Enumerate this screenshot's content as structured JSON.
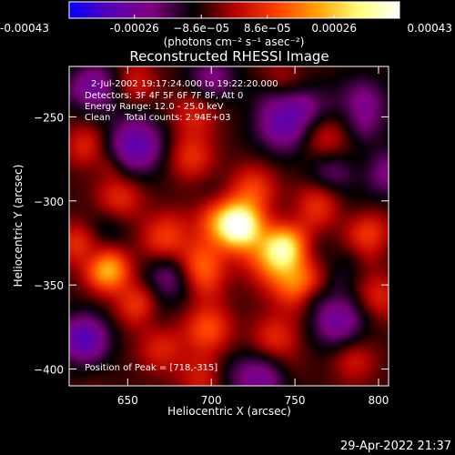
{
  "chart_data": {
    "type": "heatmap",
    "title": "Reconstructed RHESSI Image",
    "xlabel": "Heliocentric X (arcsec)",
    "ylabel": "Heliocentric Y (arcsec)",
    "xlim": [
      615,
      806
    ],
    "ylim": [
      -410,
      -220
    ],
    "x_ticks": [
      650,
      700,
      750,
      800
    ],
    "x_tick_labels": [
      "650",
      "700",
      "750",
      "800"
    ],
    "y_ticks": [
      -250,
      -300,
      -350,
      -400
    ],
    "y_tick_labels": [
      "−250",
      "−300",
      "−350",
      "−400"
    ],
    "colorbar": {
      "range": [
        -0.00043,
        0.00043
      ],
      "ticks": [
        -0.00043,
        -0.00026,
        -8.6e-05,
        8.6e-05,
        0.00026,
        0.00043
      ],
      "tick_labels": [
        "-0.00043",
        "-0.00026",
        "−8.6e−05",
        "8.6e−05",
        "0.00026",
        "0.00043"
      ],
      "units": "(photons cm⁻² s⁻¹ asec⁻²)",
      "colors": [
        "#0000ff",
        "#5a00b4",
        "#800080",
        "#000000",
        "#b40000",
        "#ff3c00",
        "#ffa000",
        "#ffff78",
        "#ffffff"
      ]
    },
    "annotations": [
      "2-Jul-2002 19:17:24.000 to 19:22:20.000",
      "Detectors: 3F 4F 5F 6F 7F 8F, Att 0",
      "Energy Range: 12.0 - 25.0 keV",
      "Clean     Total counts: 2.94E+03"
    ],
    "peak_label": "Position of Peak = [718,-315]",
    "peak": [
      718,
      -315
    ],
    "sources": [
      {
        "x": 718,
        "y": -315,
        "amp": 1.0,
        "width": 9
      },
      {
        "x": 706,
        "y": -312,
        "amp": 0.55,
        "width": 11
      },
      {
        "x": 744,
        "y": -327,
        "amp": 0.8,
        "width": 9
      },
      {
        "x": 733,
        "y": -336,
        "amp": 0.45,
        "width": 11
      },
      {
        "x": 638,
        "y": -341,
        "amp": 0.75,
        "width": 9
      },
      {
        "x": 694,
        "y": -339,
        "amp": 0.5,
        "width": 10
      },
      {
        "x": 752,
        "y": -349,
        "amp": 0.55,
        "width": 11
      },
      {
        "x": 725,
        "y": -293,
        "amp": 0.4,
        "width": 10
      },
      {
        "x": 672,
        "y": -322,
        "amp": 0.4,
        "width": 10
      },
      {
        "x": 698,
        "y": -376,
        "amp": 0.45,
        "width": 10
      },
      {
        "x": 738,
        "y": -382,
        "amp": 0.35,
        "width": 10
      },
      {
        "x": 670,
        "y": -388,
        "amp": 0.3,
        "width": 10
      },
      {
        "x": 695,
        "y": -405,
        "amp": 0.3,
        "width": 10
      },
      {
        "x": 764,
        "y": -302,
        "amp": 0.35,
        "width": 10
      },
      {
        "x": 688,
        "y": -274,
        "amp": 0.35,
        "width": 10
      },
      {
        "x": 690,
        "y": -248,
        "amp": 0.3,
        "width": 10
      },
      {
        "x": 768,
        "y": -263,
        "amp": 0.3,
        "width": 10
      },
      {
        "x": 645,
        "y": -298,
        "amp": 0.35,
        "width": 10
      },
      {
        "x": 620,
        "y": -325,
        "amp": 0.35,
        "width": 9
      },
      {
        "x": 795,
        "y": -318,
        "amp": 0.3,
        "width": 9
      },
      {
        "x": 800,
        "y": -356,
        "amp": 0.3,
        "width": 9
      },
      {
        "x": 656,
        "y": -362,
        "amp": 0.4,
        "width": 9
      },
      {
        "x": 786,
        "y": -396,
        "amp": 0.3,
        "width": 9
      },
      {
        "x": 625,
        "y": -268,
        "amp": 0.25,
        "width": 9
      },
      {
        "x": 655,
        "y": -230,
        "amp": 0.25,
        "width": 9
      },
      {
        "x": 740,
        "y": -228,
        "amp": 0.25,
        "width": 9
      },
      {
        "x": 655,
        "y": -267,
        "amp": -0.55,
        "width": 12
      },
      {
        "x": 744,
        "y": -254,
        "amp": -0.5,
        "width": 12
      },
      {
        "x": 788,
        "y": -243,
        "amp": -0.55,
        "width": 11
      },
      {
        "x": 624,
        "y": -382,
        "amp": -0.6,
        "width": 10
      },
      {
        "x": 675,
        "y": -345,
        "amp": -0.35,
        "width": 10
      },
      {
        "x": 730,
        "y": -405,
        "amp": -0.4,
        "width": 11
      },
      {
        "x": 775,
        "y": -372,
        "amp": -0.4,
        "width": 11
      },
      {
        "x": 630,
        "y": -232,
        "amp": -0.45,
        "width": 10
      },
      {
        "x": 700,
        "y": -228,
        "amp": -0.35,
        "width": 10
      },
      {
        "x": 772,
        "y": -283,
        "amp": -0.3,
        "width": 10
      },
      {
        "x": 805,
        "y": -283,
        "amp": -0.35,
        "width": 10
      }
    ]
  },
  "footer": {
    "timestamp": "29-Apr-2022 21:37"
  }
}
